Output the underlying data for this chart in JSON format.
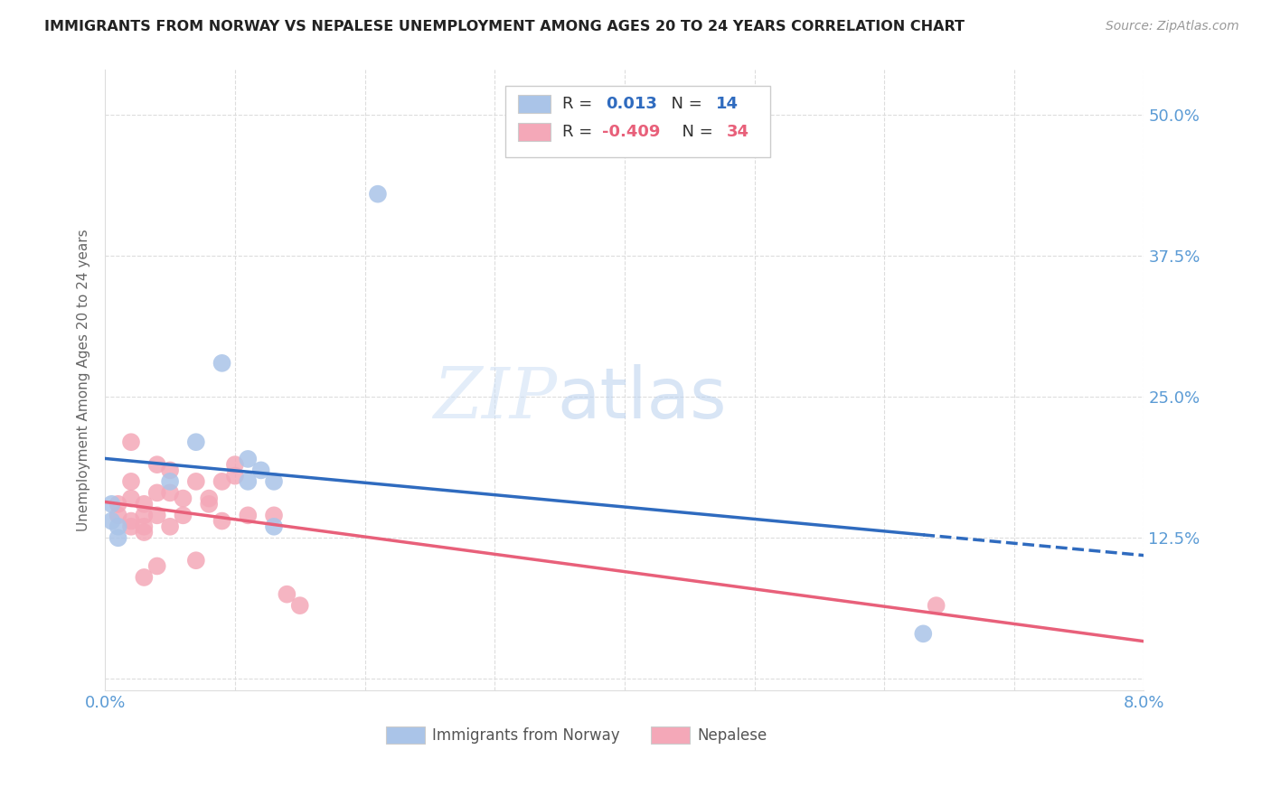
{
  "title": "IMMIGRANTS FROM NORWAY VS NEPALESE UNEMPLOYMENT AMONG AGES 20 TO 24 YEARS CORRELATION CHART",
  "source": "Source: ZipAtlas.com",
  "ylabel": "Unemployment Among Ages 20 to 24 years",
  "ytick_labels": [
    "",
    "12.5%",
    "25.0%",
    "37.5%",
    "50.0%"
  ],
  "ytick_values": [
    0,
    0.125,
    0.25,
    0.375,
    0.5
  ],
  "xlim": [
    0.0,
    0.08
  ],
  "ylim": [
    -0.01,
    0.54
  ],
  "norway_R": "0.013",
  "norway_N": "14",
  "nepalese_R": "-0.409",
  "nepalese_N": "34",
  "norway_color": "#aac4e8",
  "nepalese_color": "#f4a8b8",
  "norway_line_color": "#2f6bbf",
  "nepalese_line_color": "#e8607a",
  "legend_label_norway": "Immigrants from Norway",
  "legend_label_nepalese": "Nepalese",
  "norway_x": [
    0.001,
    0.001,
    0.005,
    0.007,
    0.009,
    0.011,
    0.011,
    0.012,
    0.013,
    0.013,
    0.021,
    0.063,
    0.0005,
    0.0005
  ],
  "norway_y": [
    0.135,
    0.125,
    0.175,
    0.21,
    0.28,
    0.175,
    0.195,
    0.185,
    0.175,
    0.135,
    0.43,
    0.04,
    0.14,
    0.155
  ],
  "nepalese_x": [
    0.001,
    0.001,
    0.002,
    0.002,
    0.002,
    0.002,
    0.003,
    0.003,
    0.003,
    0.003,
    0.003,
    0.004,
    0.004,
    0.004,
    0.004,
    0.005,
    0.005,
    0.005,
    0.006,
    0.006,
    0.007,
    0.007,
    0.008,
    0.008,
    0.009,
    0.009,
    0.01,
    0.01,
    0.011,
    0.013,
    0.014,
    0.015,
    0.064,
    0.002
  ],
  "nepalese_y": [
    0.145,
    0.155,
    0.14,
    0.16,
    0.135,
    0.175,
    0.145,
    0.13,
    0.135,
    0.09,
    0.155,
    0.145,
    0.165,
    0.19,
    0.1,
    0.165,
    0.185,
    0.135,
    0.16,
    0.145,
    0.175,
    0.105,
    0.155,
    0.16,
    0.175,
    0.14,
    0.19,
    0.18,
    0.145,
    0.145,
    0.075,
    0.065,
    0.065,
    0.21
  ],
  "grid_color": "#dddddd",
  "background_color": "#ffffff",
  "title_fontsize": 11.5,
  "tick_label_color": "#5b9bd5"
}
